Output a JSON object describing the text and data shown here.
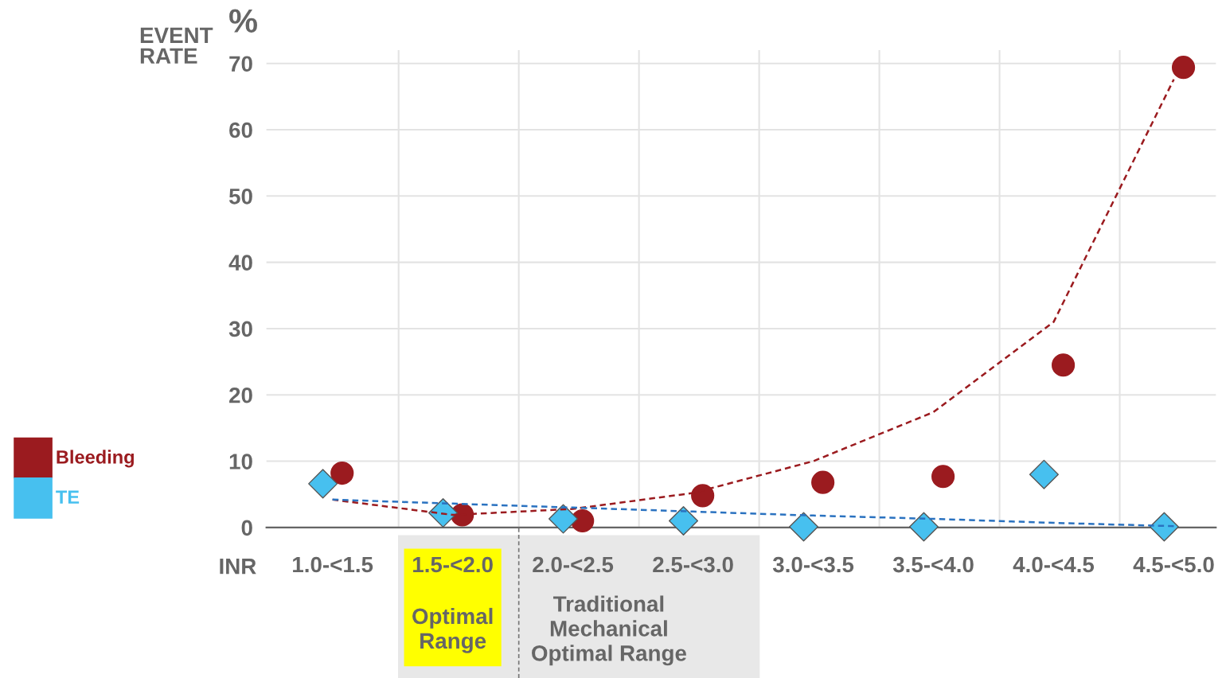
{
  "chart_data": {
    "type": "scatter",
    "ylabel": "EVENT\nRATE",
    "xlabel": "INR",
    "categories": [
      "1.0-<1.5",
      "1.5-<2.0",
      "2.0-<2.5",
      "2.5-<3.0",
      "3.0-<3.5",
      "3.5-<4.0",
      "4.0-<4.5",
      "4.5-<5.0"
    ],
    "ylim": [
      0,
      72
    ],
    "yticks": [
      0,
      10,
      20,
      30,
      40,
      50,
      60,
      70
    ],
    "grid": true,
    "legend": "left",
    "series": [
      {
        "name": "Bleeding",
        "color": "#9b1b1f",
        "marker": "circle",
        "values": [
          8.2,
          1.9,
          1.0,
          4.8,
          6.8,
          7.7,
          24.5,
          69.4
        ]
      },
      {
        "name": "TE",
        "color": "#47c0ef",
        "marker": "diamond",
        "values": [
          6.6,
          2.2,
          1.3,
          1.0,
          0.1,
          0.1,
          8.0,
          0.1
        ]
      },
      {
        "type": "line",
        "color": "#9b1b1f",
        "line_style": "dashed",
        "values": [
          4.2,
          1.9,
          2.8,
          5.2,
          10.0,
          17.4,
          31,
          67.6
        ]
      },
      {
        "type": "line",
        "color": "#2a72c0",
        "line_style": "dashed",
        "values": [
          4.2,
          3.6,
          3.0,
          2.4,
          1.8,
          1.3,
          0.7,
          0.2
        ]
      }
    ],
    "annotations": [
      "%",
      "Traditional\nMechanical\nOptimal Range",
      "Optimal\nRange"
    ]
  }
}
